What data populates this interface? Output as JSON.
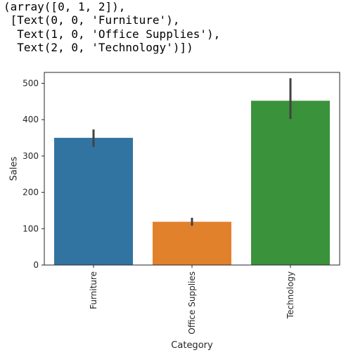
{
  "output_text": {
    "lines": [
      "(array([0, 1, 2]),",
      " [Text(0, 0, 'Furniture'),",
      "  Text(1, 0, 'Office Supplies'),",
      "  Text(2, 0, 'Technology')])"
    ]
  },
  "chart_data": {
    "type": "bar",
    "categories": [
      "Furniture",
      "Office Supplies",
      "Technology"
    ],
    "values": [
      350,
      119,
      452
    ],
    "error_low": [
      325,
      108,
      402
    ],
    "error_high": [
      373,
      130,
      514
    ],
    "colors": [
      "#3274a1",
      "#e1812c",
      "#3a923a"
    ],
    "error_color": "#424242",
    "xlabel": "Category",
    "ylabel": "Sales",
    "ylim": [
      0,
      530
    ],
    "yticks": [
      0,
      100,
      200,
      300,
      400,
      500
    ],
    "grid": false,
    "xtick_rotation": "vertical"
  }
}
